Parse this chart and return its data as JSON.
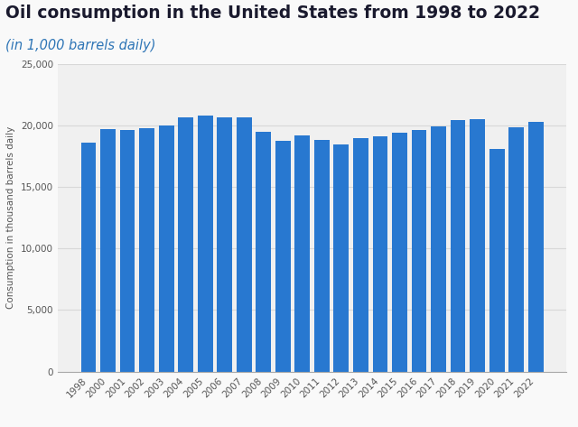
{
  "title": "Oil consumption in the United States from 1998 to 2022",
  "subtitle": "(in 1,000 barrels daily)",
  "ylabel": "Consumption in thousand barrels daily",
  "years": [
    "1998",
    "2000",
    "2001",
    "2002",
    "2003",
    "2004",
    "2005",
    "2006",
    "2007",
    "2008",
    "2009",
    "2010",
    "2011",
    "2012",
    "2013",
    "2014",
    "2015",
    "2016",
    "2017",
    "2018",
    "2019",
    "2020",
    "2021",
    "2022"
  ],
  "values": [
    18630,
    19701,
    19649,
    19761,
    20033,
    20655,
    20802,
    20687,
    20680,
    19498,
    18771,
    19180,
    18835,
    18490,
    18961,
    19106,
    19396,
    19631,
    19958,
    20456,
    20540,
    18120,
    19890,
    20280
  ],
  "bar_color": "#2878d0",
  "background_color": "#f9f9f9",
  "plot_bg_color": "#f0f0f0",
  "ylim": [
    0,
    25000
  ],
  "yticks": [
    0,
    5000,
    10000,
    15000,
    20000,
    25000
  ],
  "title_color": "#1a1a2e",
  "subtitle_color": "#2e75b6",
  "title_fontsize": 13.5,
  "subtitle_fontsize": 10.5,
  "ylabel_fontsize": 7.5,
  "tick_fontsize": 7.5,
  "grid_color": "#d8d8d8"
}
